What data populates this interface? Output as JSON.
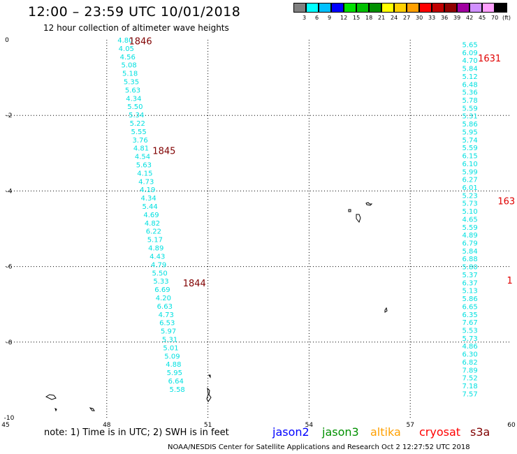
{
  "title": "12:00 – 23:59 UTC 10/01/2018",
  "subtitle": "12 hour collection of altimeter wave heights",
  "legend": {
    "colors": [
      "#808080",
      "#00ffff",
      "#00c0ff",
      "#0000ff",
      "#00e000",
      "#00c000",
      "#009000",
      "#ffff00",
      "#ffd000",
      "#ffa000",
      "#ff0000",
      "#c00000",
      "#900000",
      "#a000a0",
      "#d090ff",
      "#ffa0ff",
      "#000000"
    ],
    "labels": [
      "3",
      "6",
      "9",
      "12",
      "15",
      "18",
      "21",
      "24",
      "27",
      "30",
      "33",
      "36",
      "39",
      "42",
      "45",
      "70",
      "(ft)"
    ]
  },
  "axes": {
    "x_ticks": [
      {
        "v": 45,
        "label": "45"
      },
      {
        "v": 48,
        "label": "48"
      },
      {
        "v": 51,
        "label": "51"
      },
      {
        "v": 54,
        "label": "54"
      },
      {
        "v": 57,
        "label": "57"
      },
      {
        "v": 60,
        "label": "60"
      }
    ],
    "y_ticks": [
      {
        "v": 0,
        "label": "0"
      },
      {
        "v": -2,
        "label": "-2"
      },
      {
        "v": -4,
        "label": "-4"
      },
      {
        "v": -6,
        "label": "-6"
      },
      {
        "v": -8,
        "label": "-8"
      },
      {
        "v": -10,
        "label": "-10"
      }
    ]
  },
  "chart_data": {
    "type": "scatter",
    "xlim": [
      45,
      60
    ],
    "ylim": [
      -10,
      0
    ],
    "tracks": [
      {
        "color": "#00e0e0",
        "points": [
          {
            "lon": 48.55,
            "lat": 0.0,
            "swh": "4.80"
          },
          {
            "lon": 48.58,
            "lat": -0.22,
            "swh": "4.05"
          },
          {
            "lon": 48.62,
            "lat": -0.44,
            "swh": "4.56"
          },
          {
            "lon": 48.66,
            "lat": -0.66,
            "swh": "5.08"
          },
          {
            "lon": 48.69,
            "lat": -0.88,
            "swh": "5.18"
          },
          {
            "lon": 48.73,
            "lat": -1.1,
            "swh": "5.35"
          },
          {
            "lon": 48.77,
            "lat": -1.32,
            "swh": "5.63"
          },
          {
            "lon": 48.8,
            "lat": -1.54,
            "swh": "4.34"
          },
          {
            "lon": 48.84,
            "lat": -1.76,
            "swh": "5.50"
          },
          {
            "lon": 48.88,
            "lat": -1.98,
            "swh": "5.34"
          },
          {
            "lon": 48.91,
            "lat": -2.2,
            "swh": "5.22"
          },
          {
            "lon": 48.95,
            "lat": -2.42,
            "swh": "5.55"
          },
          {
            "lon": 48.99,
            "lat": -2.64,
            "swh": "3.76"
          },
          {
            "lon": 49.02,
            "lat": -2.86,
            "swh": "4.81"
          },
          {
            "lon": 49.06,
            "lat": -3.08,
            "swh": "4.54"
          },
          {
            "lon": 49.1,
            "lat": -3.3,
            "swh": "5.63"
          },
          {
            "lon": 49.13,
            "lat": -3.52,
            "swh": "4.15"
          },
          {
            "lon": 49.17,
            "lat": -3.74,
            "swh": "4.73"
          },
          {
            "lon": 49.21,
            "lat": -3.96,
            "swh": "4.19"
          },
          {
            "lon": 49.24,
            "lat": -4.18,
            "swh": "4.34"
          },
          {
            "lon": 49.28,
            "lat": -4.4,
            "swh": "5.44"
          },
          {
            "lon": 49.32,
            "lat": -4.62,
            "swh": "4.69"
          },
          {
            "lon": 49.35,
            "lat": -4.84,
            "swh": "4.82"
          },
          {
            "lon": 49.39,
            "lat": -5.06,
            "swh": "6.22"
          },
          {
            "lon": 49.43,
            "lat": -5.28,
            "swh": "5.17"
          },
          {
            "lon": 49.46,
            "lat": -5.5,
            "swh": "4.89"
          },
          {
            "lon": 49.5,
            "lat": -5.72,
            "swh": "4.43"
          },
          {
            "lon": 49.54,
            "lat": -5.94,
            "swh": "4.79"
          },
          {
            "lon": 49.57,
            "lat": -6.16,
            "swh": "5.50"
          },
          {
            "lon": 49.61,
            "lat": -6.38,
            "swh": "5.33"
          },
          {
            "lon": 49.65,
            "lat": -6.6,
            "swh": "6.69"
          },
          {
            "lon": 49.68,
            "lat": -6.82,
            "swh": "4.20"
          },
          {
            "lon": 49.72,
            "lat": -7.04,
            "swh": "6.63"
          },
          {
            "lon": 49.76,
            "lat": -7.26,
            "swh": "4.73"
          },
          {
            "lon": 49.79,
            "lat": -7.48,
            "swh": "6.53"
          },
          {
            "lon": 49.83,
            "lat": -7.7,
            "swh": "5.97"
          },
          {
            "lon": 49.87,
            "lat": -7.92,
            "swh": "5.31"
          },
          {
            "lon": 49.9,
            "lat": -8.14,
            "swh": "5.01"
          },
          {
            "lon": 49.94,
            "lat": -8.36,
            "swh": "5.09"
          },
          {
            "lon": 49.98,
            "lat": -8.58,
            "swh": "4.88"
          },
          {
            "lon": 50.01,
            "lat": -8.8,
            "swh": "5.95"
          },
          {
            "lon": 50.05,
            "lat": -9.02,
            "swh": "6.64"
          },
          {
            "lon": 50.09,
            "lat": -9.24,
            "swh": "5.58"
          }
        ],
        "time_labels": [
          {
            "lon": 49.0,
            "lat": -0.05,
            "text": "1846",
            "color": "#800000"
          },
          {
            "lon": 49.7,
            "lat": -2.95,
            "text": "1845",
            "color": "#800000"
          },
          {
            "lon": 50.6,
            "lat": -6.45,
            "text": "1844",
            "color": "#800000"
          }
        ]
      },
      {
        "color": "#00e0e0",
        "points": [
          {
            "lon": 58.77,
            "lat": -0.12,
            "swh": "5.65"
          },
          {
            "lon": 58.77,
            "lat": -0.33,
            "swh": "6.09"
          },
          {
            "lon": 58.77,
            "lat": -0.54,
            "swh": "4.70"
          },
          {
            "lon": 58.77,
            "lat": -0.75,
            "swh": "5.84"
          },
          {
            "lon": 58.77,
            "lat": -0.96,
            "swh": "5.12"
          },
          {
            "lon": 58.77,
            "lat": -1.17,
            "swh": "6.48"
          },
          {
            "lon": 58.77,
            "lat": -1.38,
            "swh": "5.36"
          },
          {
            "lon": 58.77,
            "lat": -1.59,
            "swh": "5.78"
          },
          {
            "lon": 58.77,
            "lat": -1.8,
            "swh": "5.59"
          },
          {
            "lon": 58.77,
            "lat": -2.01,
            "swh": "5.31"
          },
          {
            "lon": 58.77,
            "lat": -2.22,
            "swh": "5.86"
          },
          {
            "lon": 58.77,
            "lat": -2.43,
            "swh": "5.95"
          },
          {
            "lon": 58.77,
            "lat": -2.64,
            "swh": "5.74"
          },
          {
            "lon": 58.77,
            "lat": -2.85,
            "swh": "5.59"
          },
          {
            "lon": 58.77,
            "lat": -3.06,
            "swh": "6.15"
          },
          {
            "lon": 58.77,
            "lat": -3.27,
            "swh": "6.10"
          },
          {
            "lon": 58.77,
            "lat": -3.48,
            "swh": "5.99"
          },
          {
            "lon": 58.77,
            "lat": -3.69,
            "swh": "6.27"
          },
          {
            "lon": 58.77,
            "lat": -3.9,
            "swh": "6.01"
          },
          {
            "lon": 58.77,
            "lat": -4.11,
            "swh": "5.23"
          },
          {
            "lon": 58.77,
            "lat": -4.32,
            "swh": "5.73"
          },
          {
            "lon": 58.77,
            "lat": -4.53,
            "swh": "5.10"
          },
          {
            "lon": 58.77,
            "lat": -4.74,
            "swh": "4.65"
          },
          {
            "lon": 58.77,
            "lat": -4.95,
            "swh": "5.59"
          },
          {
            "lon": 58.77,
            "lat": -5.16,
            "swh": "4.89"
          },
          {
            "lon": 58.77,
            "lat": -5.37,
            "swh": "6.79"
          },
          {
            "lon": 58.77,
            "lat": -5.58,
            "swh": "5.84"
          },
          {
            "lon": 58.77,
            "lat": -5.79,
            "swh": "6.88"
          },
          {
            "lon": 58.77,
            "lat": -6.0,
            "swh": "5.80"
          },
          {
            "lon": 58.77,
            "lat": -6.21,
            "swh": "5.37"
          },
          {
            "lon": 58.77,
            "lat": -6.42,
            "swh": "6.37"
          },
          {
            "lon": 58.77,
            "lat": -6.63,
            "swh": "5.13"
          },
          {
            "lon": 58.77,
            "lat": -6.84,
            "swh": "5.86"
          },
          {
            "lon": 58.77,
            "lat": -7.05,
            "swh": "6.65"
          },
          {
            "lon": 58.77,
            "lat": -7.26,
            "swh": "6.35"
          },
          {
            "lon": 58.77,
            "lat": -7.47,
            "swh": "7.67"
          },
          {
            "lon": 58.77,
            "lat": -7.68,
            "swh": "5.53"
          },
          {
            "lon": 58.77,
            "lat": -7.89,
            "swh": "5.73"
          },
          {
            "lon": 58.77,
            "lat": -8.1,
            "swh": "4.86"
          },
          {
            "lon": 58.77,
            "lat": -8.31,
            "swh": "6.30"
          },
          {
            "lon": 58.77,
            "lat": -8.52,
            "swh": "6.82"
          },
          {
            "lon": 58.77,
            "lat": -8.73,
            "swh": "7.89"
          },
          {
            "lon": 58.77,
            "lat": -8.94,
            "swh": "7.52"
          },
          {
            "lon": 58.77,
            "lat": -9.15,
            "swh": "7.18"
          },
          {
            "lon": 58.77,
            "lat": -9.36,
            "swh": "7.57"
          }
        ],
        "time_labels": [
          {
            "lon": 59.35,
            "lat": -0.5,
            "text": "1631",
            "color": "#e00000"
          },
          {
            "lon": 59.85,
            "lat": -4.28,
            "text": "163",
            "color": "#e00000"
          },
          {
            "lon": 59.95,
            "lat": -6.38,
            "text": "1",
            "color": "#e00000"
          }
        ]
      }
    ]
  },
  "note": "note:  1) Time is in UTC;  2) SWH is in feet",
  "satellites": [
    {
      "name": "jason2",
      "color": "#0000ff"
    },
    {
      "name": "jason3",
      "color": "#009000"
    },
    {
      "name": "altika",
      "color": "#ffa000"
    },
    {
      "name": "cryosat",
      "color": "#ff0000"
    },
    {
      "name": "s3a",
      "color": "#800000"
    }
  ],
  "credit": "NOAA/NESDIS Center for Satellite Applications and Research    Oct  2 12:27:52 UTC 2018"
}
